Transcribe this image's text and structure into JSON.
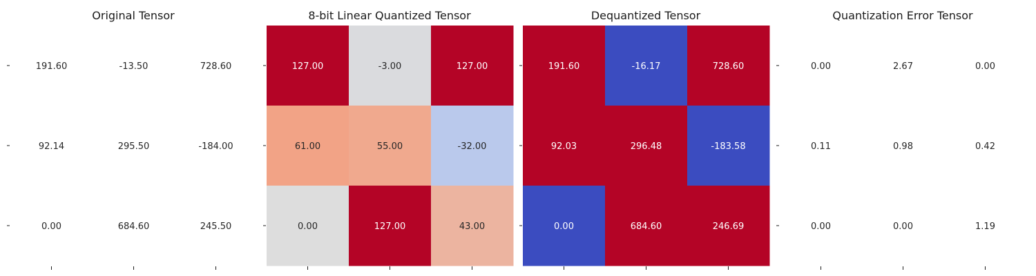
{
  "chart_data": [
    {
      "type": "heatmap",
      "title": "Original Tensor",
      "colormap": "none",
      "values": [
        [
          191.6,
          -13.5,
          728.6
        ],
        [
          92.14,
          295.5,
          -184.0
        ],
        [
          0.0,
          684.6,
          245.5
        ]
      ],
      "labels": [
        [
          "191.60",
          "-13.50",
          "728.60"
        ],
        [
          "92.14",
          "295.50",
          "-184.00"
        ],
        [
          "0.00",
          "684.60",
          "245.50"
        ]
      ]
    },
    {
      "type": "heatmap",
      "title": "8-bit Linear Quantized Tensor",
      "colormap": "coolwarm",
      "values": [
        [
          127.0,
          -3.0,
          127.0
        ],
        [
          61.0,
          55.0,
          -32.0
        ],
        [
          0.0,
          127.0,
          43.0
        ]
      ],
      "labels": [
        [
          "127.00",
          "-3.00",
          "127.00"
        ],
        [
          "61.00",
          "55.00",
          "-32.00"
        ],
        [
          "0.00",
          "127.00",
          "43.00"
        ]
      ]
    },
    {
      "type": "heatmap",
      "title": "Dequantized Tensor",
      "colormap": "coolwarm",
      "values": [
        [
          191.6,
          -16.17,
          728.6
        ],
        [
          92.03,
          296.48,
          -183.58
        ],
        [
          0.0,
          684.6,
          246.69
        ]
      ],
      "labels": [
        [
          "191.60",
          "-16.17",
          "728.60"
        ],
        [
          "92.03",
          "296.48",
          "-183.58"
        ],
        [
          "0.00",
          "684.60",
          "246.69"
        ]
      ]
    },
    {
      "type": "heatmap",
      "title": "Quantization Error Tensor",
      "colormap": "none",
      "values": [
        [
          0.0,
          2.67,
          0.0
        ],
        [
          0.11,
          0.98,
          0.42
        ],
        [
          0.0,
          0.0,
          1.19
        ]
      ],
      "labels": [
        [
          "0.00",
          "2.67",
          "0.00"
        ],
        [
          "0.11",
          "0.98",
          "0.42"
        ],
        [
          "0.00",
          "0.00",
          "1.19"
        ]
      ]
    }
  ],
  "colors": {
    "coolwarm": {
      "-32": "#b9d0f9",
      "-3": "#dcdddd",
      "0": "#dcdddd",
      "43": "#f5b89a",
      "55": "#f4a688",
      "61": "#f39b7a",
      "127": "#b40426",
      "-16.17": "#3b4cc0",
      "-183.58": "#3b4cc0",
      "0.00": "#3b4cc0",
      "high": "#b40426",
      "low": "#3b4cc0"
    },
    "label_dark": "#262626",
    "label_light": "#ffffff"
  }
}
